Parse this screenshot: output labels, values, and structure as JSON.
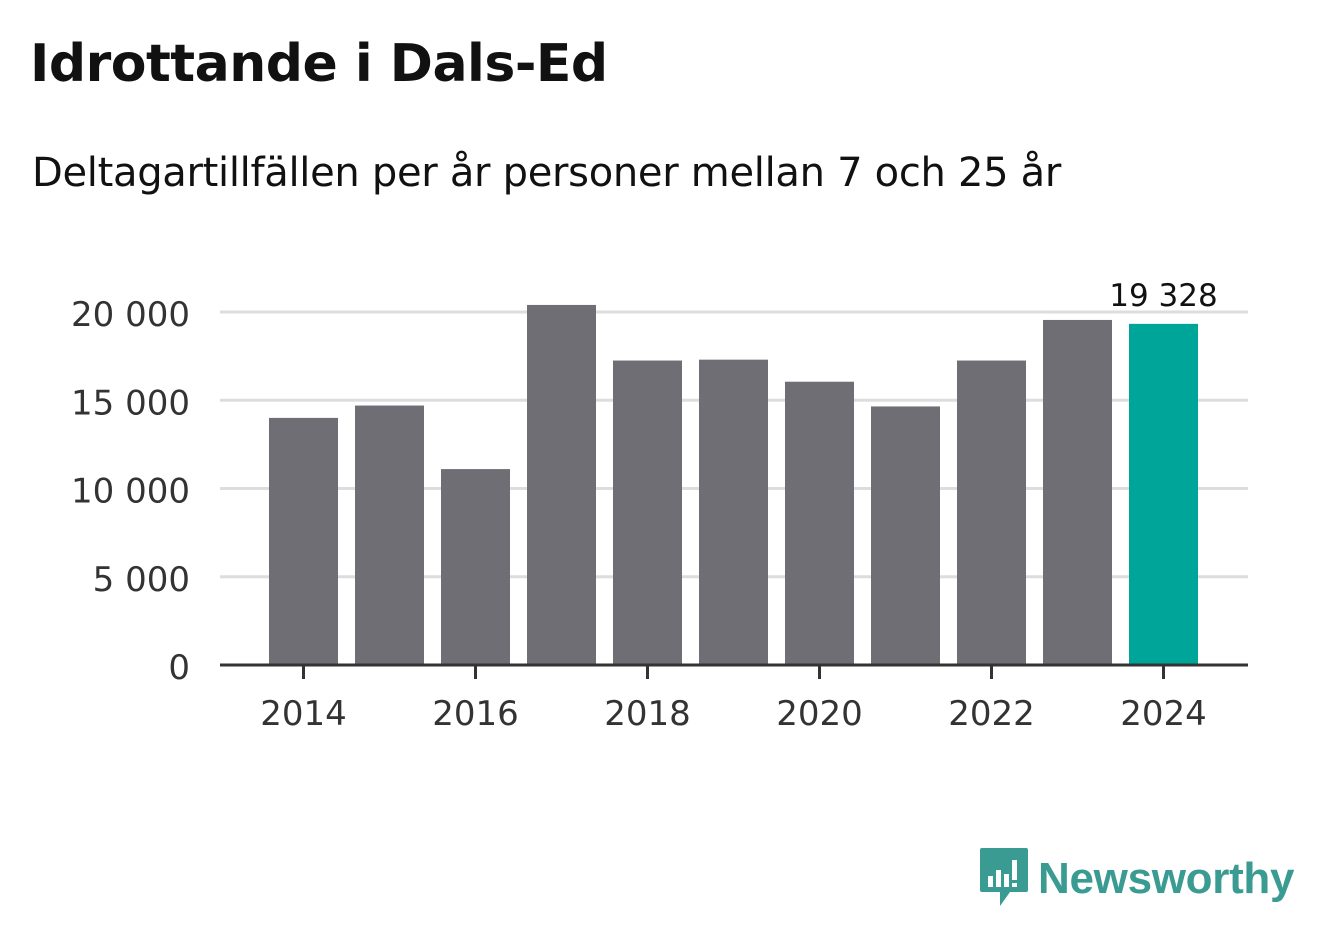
{
  "header": {
    "title": "Idrottande i Dals-Ed",
    "subtitle": "Deltagartillfällen per år personer mellan 7 och 25 år"
  },
  "chart_data": {
    "type": "bar",
    "title": "Idrottande i Dals-Ed",
    "subtitle": "Deltagartillfällen per år personer mellan 7 och 25 år",
    "categories": [
      "2014",
      "2015",
      "2016",
      "2017",
      "2018",
      "2019",
      "2020",
      "2021",
      "2022",
      "2023",
      "2024"
    ],
    "values": [
      14000,
      14700,
      11100,
      20400,
      17250,
      17300,
      16050,
      14650,
      17250,
      19550,
      19328
    ],
    "x_tick_labels": [
      "2014",
      "2016",
      "2018",
      "2020",
      "2022",
      "2024"
    ],
    "y_ticks": [
      0,
      5000,
      10000,
      15000,
      20000
    ],
    "y_tick_labels": [
      "0",
      "5 000",
      "10 000",
      "15 000",
      "20 000"
    ],
    "ylim": [
      0,
      20000
    ],
    "xlabel": "",
    "ylabel": "",
    "grid": true,
    "highlight_index": 10,
    "highlight_label": "19 328",
    "colors": {
      "bar": "#6f6e74",
      "highlight": "#00a59a",
      "grid": "#dddddd",
      "axis": "#333333",
      "text": "#333333"
    }
  },
  "branding": {
    "logo_text": "Newsworthy",
    "logo_color": "#3a9b92"
  }
}
